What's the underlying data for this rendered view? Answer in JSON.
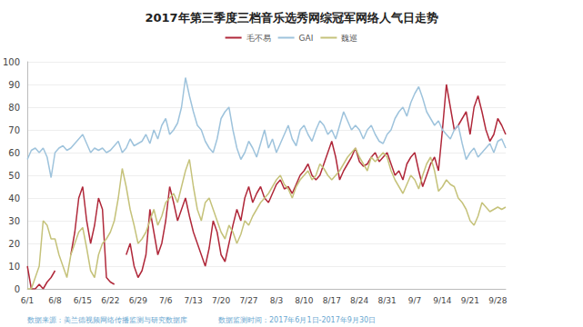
{
  "chart_data": {
    "type": "line",
    "title": "2017年第三季度三档音乐选秀网综冠军网络人气日走势",
    "annotations": [
      "数据来源：美兰德视频网络传播监测与研究数据库",
      "数据监测时间：2017年6月1日-2017年9月30日"
    ],
    "categories": [
      "6/1",
      null,
      null,
      null,
      null,
      null,
      null,
      "6/8",
      null,
      null,
      null,
      null,
      null,
      null,
      "6/15",
      null,
      null,
      null,
      null,
      null,
      null,
      "6/22",
      null,
      null,
      null,
      null,
      null,
      null,
      "6/29",
      null,
      null,
      null,
      null,
      null,
      null,
      "7/6",
      null,
      null,
      null,
      null,
      null,
      null,
      "7/13",
      null,
      null,
      null,
      null,
      null,
      null,
      "7/20",
      null,
      null,
      null,
      null,
      null,
      null,
      "7/27",
      null,
      null,
      null,
      null,
      null,
      null,
      "8/3",
      null,
      null,
      null,
      null,
      null,
      null,
      "8/10",
      null,
      null,
      null,
      null,
      null,
      null,
      "8/17",
      null,
      null,
      null,
      null,
      null,
      null,
      "8/24",
      null,
      null,
      null,
      null,
      null,
      null,
      "8/31",
      null,
      null,
      null,
      null,
      null,
      null,
      "9/7",
      null,
      null,
      null,
      null,
      null,
      null,
      "9/14",
      null,
      null,
      null,
      null,
      null,
      null,
      "9/21",
      null,
      null,
      null,
      null,
      null,
      null,
      "9/28",
      null,
      null
    ],
    "series": [
      {
        "name": "毛不易",
        "color": "#b0283a",
        "values": [
          10,
          0,
          0,
          2,
          0,
          3,
          5,
          8,
          null,
          null,
          null,
          15,
          25,
          40,
          45,
          30,
          20,
          28,
          40,
          35,
          5,
          3,
          2,
          null,
          null,
          15,
          20,
          10,
          5,
          8,
          15,
          35,
          25,
          15,
          20,
          30,
          45,
          38,
          30,
          35,
          40,
          32,
          25,
          20,
          15,
          10,
          18,
          30,
          25,
          15,
          12,
          20,
          28,
          35,
          30,
          40,
          45,
          38,
          42,
          45,
          40,
          38,
          42,
          46,
          48,
          44,
          45,
          42,
          46,
          50,
          52,
          55,
          50,
          48,
          50,
          55,
          60,
          65,
          58,
          48,
          52,
          55,
          58,
          62,
          56,
          54,
          55,
          58,
          60,
          56,
          58,
          60,
          55,
          50,
          52,
          48,
          55,
          58,
          60,
          52,
          45,
          50,
          55,
          58,
          52,
          70,
          90,
          80,
          70,
          72,
          75,
          78,
          68,
          80,
          85,
          78,
          70,
          65,
          68,
          75,
          72,
          68
        ]
      },
      {
        "name": "GAI",
        "color": "#9ec3dc",
        "values": [
          57,
          61,
          62,
          60,
          62,
          58,
          49,
          60,
          62,
          63,
          61,
          62,
          64,
          66,
          68,
          64,
          60,
          62,
          61,
          62,
          60,
          61,
          63,
          65,
          60,
          62,
          66,
          63,
          64,
          65,
          68,
          64,
          70,
          66,
          72,
          75,
          68,
          70,
          73,
          80,
          93,
          85,
          78,
          72,
          70,
          65,
          62,
          60,
          66,
          75,
          78,
          80,
          70,
          62,
          57,
          60,
          65,
          62,
          58,
          64,
          70,
          62,
          66,
          60,
          64,
          68,
          72,
          66,
          63,
          70,
          72,
          68,
          65,
          70,
          74,
          72,
          68,
          70,
          66,
          72,
          78,
          74,
          70,
          72,
          70,
          66,
          70,
          72,
          68,
          65,
          64,
          68,
          70,
          75,
          78,
          80,
          76,
          82,
          86,
          89,
          84,
          78,
          75,
          72,
          74,
          70,
          68,
          66,
          70,
          72,
          64,
          57,
          60,
          62,
          58,
          60,
          62,
          64,
          60,
          65,
          66,
          62
        ]
      },
      {
        "name": "魏巡",
        "color": "#c5c27a",
        "values": [
          0,
          0,
          5,
          10,
          30,
          28,
          22,
          22,
          15,
          10,
          5,
          15,
          20,
          25,
          27,
          18,
          8,
          5,
          15,
          20,
          22,
          25,
          30,
          40,
          53,
          45,
          35,
          28,
          20,
          22,
          25,
          30,
          35,
          28,
          32,
          38,
          40,
          42,
          38,
          45,
          52,
          57,
          45,
          35,
          30,
          38,
          40,
          35,
          30,
          25,
          22,
          28,
          25,
          20,
          24,
          30,
          28,
          32,
          35,
          38,
          40,
          42,
          45,
          48,
          50,
          46,
          44,
          40,
          45,
          48,
          50,
          52,
          48,
          50,
          55,
          53,
          50,
          48,
          50,
          52,
          55,
          58,
          60,
          62,
          58,
          55,
          52,
          58,
          56,
          58,
          60,
          58,
          52,
          48,
          45,
          42,
          46,
          50,
          48,
          44,
          50,
          55,
          58,
          52,
          43,
          45,
          48,
          46,
          45,
          40,
          38,
          35,
          30,
          28,
          32,
          38,
          36,
          34,
          35,
          36,
          35,
          36
        ]
      }
    ],
    "ylim": [
      0,
      100
    ],
    "yticks": [
      0,
      10,
      20,
      30,
      40,
      50,
      60,
      70,
      80,
      90,
      100
    ],
    "grid": true,
    "legend": "top"
  }
}
